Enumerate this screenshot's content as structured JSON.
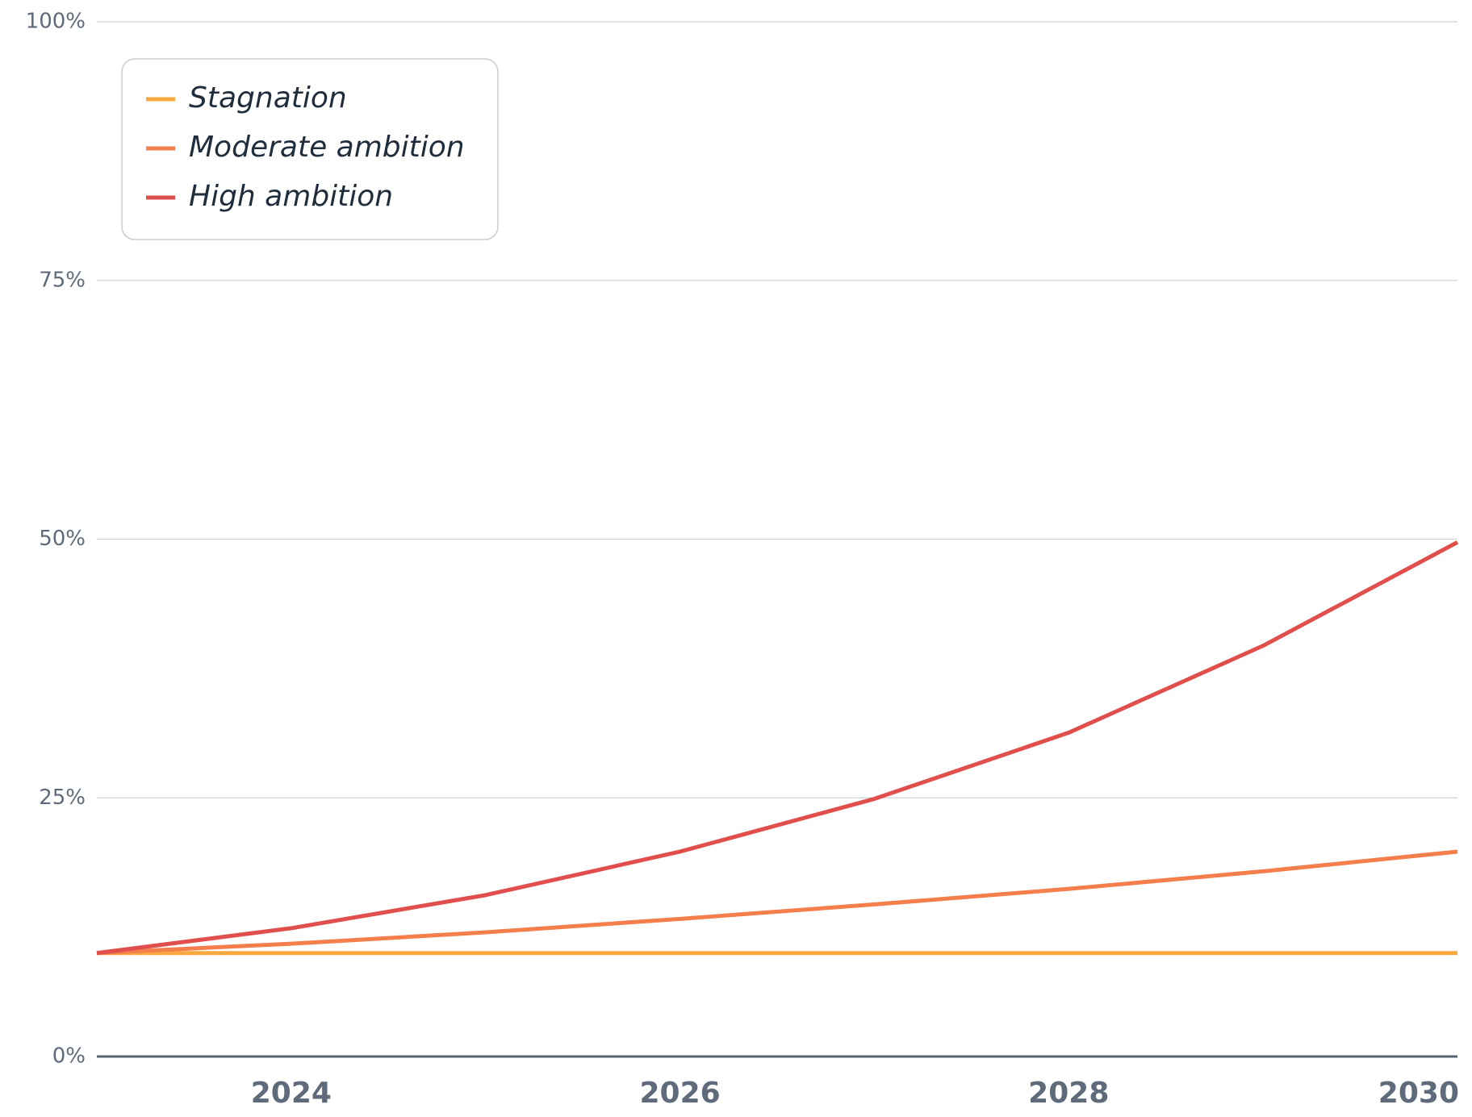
{
  "chart_data": {
    "type": "line",
    "x": [
      2023,
      2024,
      2025,
      2026,
      2027,
      2028,
      2029,
      2030
    ],
    "series": [
      {
        "name": "Stagnation",
        "color": "#f5a93e",
        "values": [
          10,
          10,
          10,
          10,
          10,
          10,
          10,
          10
        ]
      },
      {
        "name": "Moderate ambition",
        "color": "#f47e4c",
        "values": [
          10,
          10.9,
          12,
          13.3,
          14.7,
          16.2,
          17.9,
          19.8
        ]
      },
      {
        "name": "High ambition",
        "color": "#e04f4b",
        "values": [
          10,
          12.4,
          15.6,
          19.8,
          24.9,
          31.3,
          39.7,
          49.7
        ]
      }
    ],
    "xlim": [
      2023,
      2030
    ],
    "xticks": [
      2024,
      2026,
      2028,
      2030
    ],
    "ylim": [
      0,
      100
    ],
    "yticks": [
      {
        "value": 0,
        "label": "0%"
      },
      {
        "value": 25,
        "label": "25%"
      },
      {
        "value": 50,
        "label": "50%"
      },
      {
        "value": 75,
        "label": "75%"
      },
      {
        "value": 100,
        "label": "100%"
      }
    ],
    "grid": true,
    "legend": "upper left"
  }
}
